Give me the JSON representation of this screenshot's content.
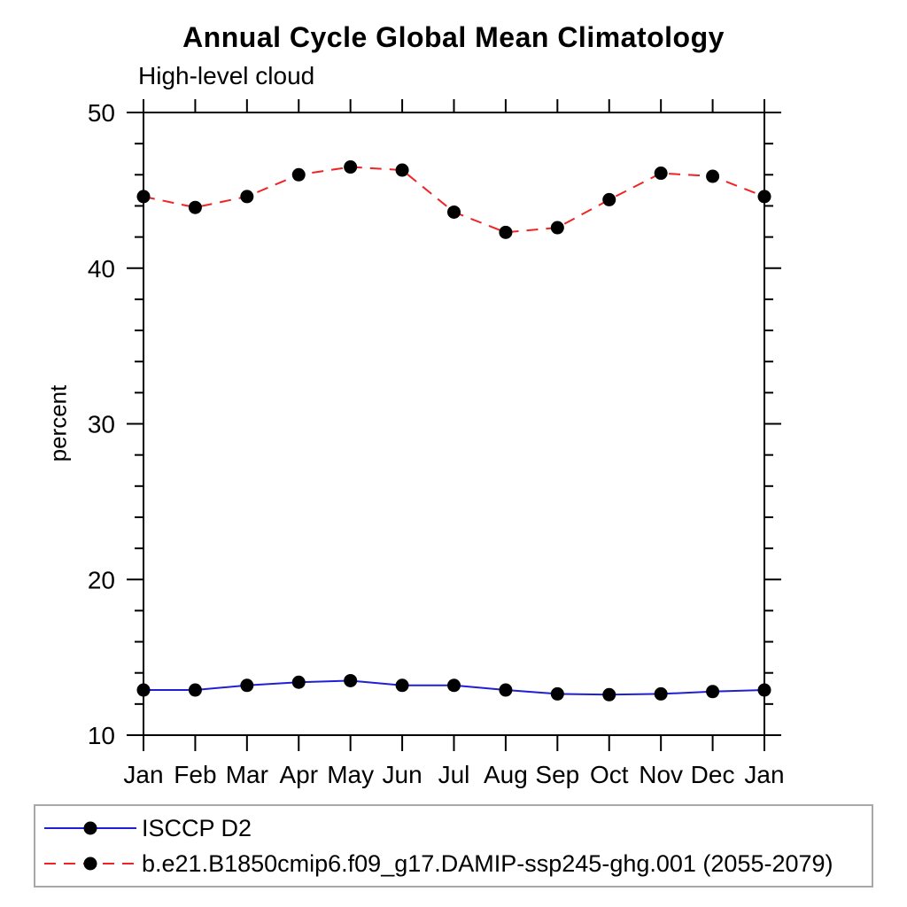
{
  "page": {
    "background": "#ffffff"
  },
  "chart_data": {
    "type": "line",
    "title": "Annual Cycle Global Mean Climatology",
    "subtitle": "High-level cloud",
    "xlabel": "",
    "ylabel": "percent",
    "categories": [
      "Jan",
      "Feb",
      "Mar",
      "Apr",
      "May",
      "Jun",
      "Jul",
      "Aug",
      "Sep",
      "Oct",
      "Nov",
      "Dec",
      "Jan"
    ],
    "ylim": [
      10,
      50
    ],
    "y_major_ticks": [
      10,
      20,
      30,
      40,
      50
    ],
    "y_minor_step": 2,
    "grid": false,
    "legend_position": "bottom-left-box",
    "marker": {
      "shape": "circle",
      "color": "#000000",
      "radius": 7.5
    },
    "axis_color": "#000000",
    "series": [
      {
        "name": "ISCCP D2",
        "color": "#1f1fd6",
        "line_style": "solid",
        "values": [
          12.9,
          12.9,
          13.2,
          13.4,
          13.5,
          13.2,
          13.2,
          12.9,
          12.65,
          12.6,
          12.65,
          12.8,
          12.9
        ]
      },
      {
        "name": "b.e21.B1850cmip6.f09_g17.DAMIP-ssp245-ghg.001 (2055-2079)",
        "color": "#f02424",
        "line_style": "dashed",
        "values": [
          44.6,
          43.9,
          44.6,
          46.0,
          46.5,
          46.3,
          43.6,
          42.3,
          42.6,
          44.4,
          46.1,
          45.9,
          44.6
        ]
      }
    ]
  }
}
